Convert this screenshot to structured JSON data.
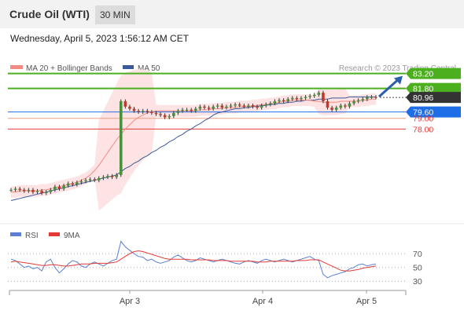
{
  "header": {
    "title": "Crude Oil (WTI)",
    "timeframe": "30 MIN",
    "datetime": "Wednesday, April 5, 2023 1:56:12 AM CET"
  },
  "legend": {
    "ma20": "MA 20 + Bollinger Bands",
    "ma50": "MA 50",
    "credit": "Research © 2023 Trading Central",
    "ma20_color": "#f28b82",
    "ma50_color": "#3a5a9a"
  },
  "rsi_legend": {
    "rsi": "RSI",
    "ma9": "9MA",
    "rsi_color": "#5b7fd4",
    "ma9_color": "#e53935"
  },
  "price_levels": [
    {
      "value": 83.2,
      "label": "83.20",
      "type": "resistance",
      "color": "#4caf1e",
      "text_color": "#ffffff"
    },
    {
      "value": 81.8,
      "label": "81.80",
      "type": "resistance",
      "color": "#4caf1e",
      "text_color": "#ffffff"
    },
    {
      "value": 80.96,
      "label": "80.96",
      "type": "last",
      "color": "#333333",
      "text_color": "#ffffff"
    },
    {
      "value": 79.6,
      "label": "79.60",
      "type": "pivot",
      "color": "#1e6ee8",
      "text_color": "#ffffff"
    },
    {
      "value": 79.0,
      "label": "79.00",
      "type": "support",
      "color": "#f0a080",
      "text_color": "#e53935"
    },
    {
      "value": 78.0,
      "label": "78.00",
      "type": "support",
      "color": "#e53935",
      "text_color": "#e53935"
    }
  ],
  "rsi_levels": [
    "70",
    "50",
    "30"
  ],
  "x_axis_labels": [
    "Apr 3",
    "Apr 4",
    "Apr 5"
  ],
  "chart_data": [
    {
      "type": "line",
      "chart": "price",
      "y_range": [
        69.5,
        84.2
      ],
      "series": [
        {
          "name": "Close",
          "values": [
            72.3,
            72.4,
            72.3,
            72.2,
            72.3,
            72.1,
            72.2,
            72.0,
            72.1,
            72.3,
            72.6,
            72.4,
            72.7,
            72.9,
            72.8,
            73.0,
            73.1,
            73.2,
            73.3,
            73.2,
            73.4,
            73.5,
            73.6,
            73.5,
            73.7,
            80.6,
            80.1,
            79.9,
            79.7,
            79.6,
            79.7,
            79.6,
            79.5,
            79.4,
            79.3,
            79.1,
            79.2,
            79.5,
            79.7,
            79.8,
            79.8,
            79.7,
            79.9,
            80.1,
            80.0,
            79.9,
            80.1,
            80.2,
            80.0,
            80.1,
            80.2,
            80.3,
            80.2,
            80.1,
            80.2,
            80.1,
            80.0,
            80.2,
            80.3,
            80.4,
            80.6,
            80.7,
            80.6,
            80.8,
            80.9,
            80.8,
            80.9,
            81.0,
            81.1,
            81.2,
            81.4,
            80.6,
            80.0,
            79.8,
            80.0,
            80.2,
            80.1,
            80.4,
            80.6,
            80.7,
            80.8,
            81.0,
            81.0,
            80.96
          ]
        },
        {
          "name": "MA 20",
          "values": [
            72.1,
            72.1,
            72.2,
            72.2,
            72.2,
            72.2,
            72.2,
            72.3,
            72.3,
            72.4,
            72.5,
            72.6,
            72.7,
            72.8,
            72.9,
            73.0,
            73.2,
            73.4,
            73.7,
            74.1,
            74.6,
            75.2,
            75.8,
            76.4,
            77.0,
            77.5,
            78.0,
            78.4,
            78.8,
            79.1,
            79.3,
            79.5,
            79.6,
            79.7,
            79.7,
            79.7,
            79.7,
            79.7,
            79.7,
            79.7,
            79.7,
            79.7,
            79.7,
            79.8,
            79.8,
            79.8,
            79.9,
            79.9,
            79.9,
            80.0,
            80.0,
            80.0,
            80.1,
            80.1,
            80.1,
            80.2,
            80.2,
            80.3,
            80.3,
            80.4,
            80.4,
            80.5,
            80.6,
            80.6,
            80.7,
            80.7,
            80.7,
            80.7,
            80.7,
            80.6,
            80.6,
            80.5,
            80.5,
            80.5,
            80.5,
            80.6,
            80.6,
            80.6,
            80.6,
            80.6,
            80.7,
            80.7,
            80.8,
            80.8
          ]
        },
        {
          "name": "MA 50",
          "values": [
            71.3,
            71.4,
            71.5,
            71.6,
            71.7,
            71.8,
            71.9,
            72.0,
            72.1,
            72.2,
            72.3,
            72.4,
            72.5,
            72.6,
            72.7,
            72.8,
            72.9,
            73.0,
            73.1,
            73.2,
            73.3,
            73.4,
            73.5,
            73.6,
            73.7,
            74.0,
            74.3,
            74.5,
            74.8,
            75.0,
            75.3,
            75.5,
            75.8,
            76.0,
            76.3,
            76.5,
            76.8,
            77.0,
            77.3,
            77.5,
            77.8,
            78.0,
            78.3,
            78.5,
            78.8,
            79.0,
            79.3,
            79.5,
            79.6,
            79.7,
            79.8,
            79.9,
            79.9,
            80.0,
            80.0,
            80.1,
            80.1,
            80.2,
            80.2,
            80.3,
            80.3,
            80.4,
            80.4,
            80.5,
            80.5,
            80.6,
            80.6,
            80.7,
            80.7,
            80.7,
            80.8,
            80.8,
            80.8,
            80.9,
            80.9,
            80.9,
            80.9,
            81.0,
            81.0,
            81.0,
            81.0,
            81.0,
            81.0,
            81.0
          ]
        }
      ]
    },
    {
      "type": "line",
      "chart": "rsi",
      "y_range": [
        20,
        85
      ],
      "series": [
        {
          "name": "RSI",
          "values": [
            62,
            60,
            55,
            50,
            52,
            48,
            50,
            45,
            58,
            62,
            50,
            42,
            48,
            55,
            60,
            58,
            52,
            50,
            55,
            58,
            55,
            52,
            56,
            60,
            62,
            88,
            80,
            75,
            70,
            66,
            65,
            60,
            62,
            58,
            56,
            58,
            60,
            65,
            68,
            64,
            60,
            58,
            60,
            64,
            62,
            60,
            58,
            60,
            62,
            60,
            58,
            56,
            55,
            58,
            60,
            58,
            56,
            60,
            62,
            60,
            58,
            60,
            62,
            60,
            58,
            60,
            62,
            64,
            66,
            62,
            60,
            40,
            35,
            38,
            40,
            42,
            44,
            48,
            50,
            54,
            55,
            52,
            54,
            55
          ]
        },
        {
          "name": "9MA",
          "values": [
            58,
            59,
            58,
            57,
            56,
            55,
            54,
            53,
            53,
            54,
            54,
            53,
            52,
            52,
            53,
            54,
            55,
            55,
            55,
            56,
            56,
            56,
            56,
            57,
            58,
            62,
            66,
            70,
            73,
            74,
            73,
            71,
            69,
            67,
            65,
            63,
            62,
            62,
            62,
            62,
            62,
            61,
            61,
            61,
            61,
            61,
            60,
            60,
            60,
            60,
            59,
            59,
            59,
            59,
            59,
            59,
            58,
            58,
            58,
            59,
            59,
            59,
            59,
            59,
            59,
            60,
            60,
            60,
            61,
            61,
            61,
            58,
            55,
            52,
            49,
            46,
            45,
            45,
            46,
            47,
            49,
            50,
            51,
            52
          ]
        }
      ]
    }
  ]
}
